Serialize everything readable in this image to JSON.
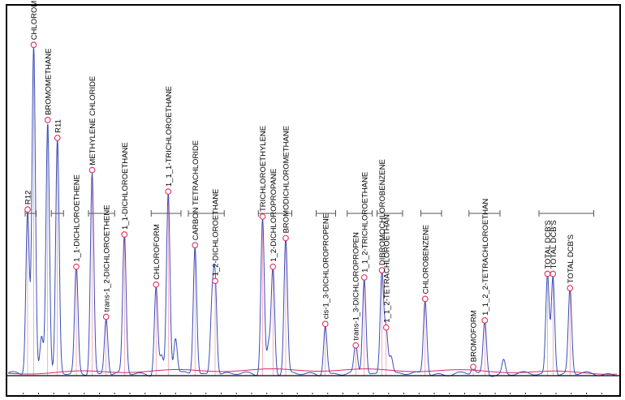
{
  "chart_data": {
    "type": "line",
    "title": "",
    "xlabel": "",
    "ylabel": "",
    "grid": false,
    "colors": {
      "trace": "#3b4fb8",
      "baseline": "#d9256b",
      "marker": "#e0305a",
      "bracket": "#555555",
      "frame": "#000000"
    },
    "peaks": [
      {
        "label": "R12",
        "t": 0.032,
        "h": 0.46
      },
      {
        "label": "CHLOROMETHANE",
        "t": 0.042,
        "h": 0.92
      },
      {
        "label": "BROMOMETHANE",
        "t": 0.065,
        "h": 0.71
      },
      {
        "label": "R11",
        "t": 0.081,
        "h": 0.66
      },
      {
        "label": "1_1-DICHLOROETHENE",
        "t": 0.112,
        "h": 0.3
      },
      {
        "label": "METHYLENE CHLORIDE",
        "t": 0.138,
        "h": 0.57
      },
      {
        "label": "trans-1_2-DICHLOROETHENE",
        "t": 0.161,
        "h": 0.16
      },
      {
        "label": "1_1-DICHLOROETHANE",
        "t": 0.191,
        "h": 0.39
      },
      {
        "label": "CHLOROFORM",
        "t": 0.243,
        "h": 0.25
      },
      {
        "label": "1_1_1-TRICHLOROETHANE",
        "t": 0.263,
        "h": 0.51
      },
      {
        "label": "CARBON TETRACHLORIDE",
        "t": 0.307,
        "h": 0.36
      },
      {
        "label": "1_2-DICHLOROETHANE",
        "t": 0.34,
        "h": 0.26
      },
      {
        "label": "TRICHLOROETHYLENE",
        "t": 0.418,
        "h": 0.44
      },
      {
        "label": "1_2-DICHLOROPROPANE",
        "t": 0.435,
        "h": 0.3
      },
      {
        "label": "BROMODICHLOROMETHANE",
        "t": 0.456,
        "h": 0.38
      },
      {
        "label": "cis-1_3-DICHLOROPROPENE",
        "t": 0.521,
        "h": 0.14
      },
      {
        "label": "trans-1_3-DICHLOROPROPEN",
        "t": 0.571,
        "h": 0.08
      },
      {
        "label": "1_1_2-TRICHLOROETHANE",
        "t": 0.585,
        "h": 0.27
      },
      {
        "label": "DIBROMOCHLOROBENZENE",
        "t": 0.614,
        "h": 0.29
      },
      {
        "label": "1_1_2-TETRACHLOROETHAN",
        "t": 0.621,
        "h": 0.13
      },
      {
        "label": "CHLOROBENZENE",
        "t": 0.685,
        "h": 0.21
      },
      {
        "label": "BROMOFORM",
        "t": 0.764,
        "h": 0.02
      },
      {
        "label": "1_1_2_2-TETRACHLOROETHAN",
        "t": 0.783,
        "h": 0.15
      },
      {
        "label": "TOTAL DCB'S",
        "t": 0.886,
        "h": 0.28
      },
      {
        "label": "TOTAL DCB'S",
        "t": 0.895,
        "h": 0.28
      },
      {
        "label": "TOTAL DCB'S",
        "t": 0.923,
        "h": 0.24
      }
    ],
    "minor_peaks": [
      {
        "t": 0.055,
        "h": 0.11
      },
      {
        "t": 0.252,
        "h": 0.05
      },
      {
        "t": 0.275,
        "h": 0.1
      },
      {
        "t": 0.335,
        "h": 0.19
      },
      {
        "t": 0.428,
        "h": 0.08
      },
      {
        "t": 0.629,
        "h": 0.05
      },
      {
        "t": 0.814,
        "h": 0.04
      }
    ],
    "integration_windows": [
      [
        0.028,
        0.046
      ],
      [
        0.071,
        0.091
      ],
      [
        0.132,
        0.175
      ],
      [
        0.235,
        0.284
      ],
      [
        0.296,
        0.355
      ],
      [
        0.411,
        0.466
      ],
      [
        0.506,
        0.538
      ],
      [
        0.557,
        0.598
      ],
      [
        0.606,
        0.648
      ],
      [
        0.678,
        0.712
      ],
      [
        0.757,
        0.808
      ],
      [
        0.872,
        0.962
      ]
    ]
  }
}
